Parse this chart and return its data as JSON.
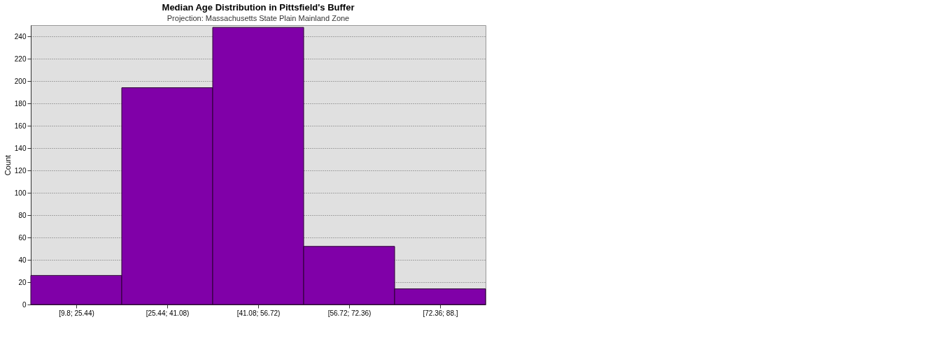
{
  "chart_data": {
    "type": "bar",
    "title": "Median Age Distribution in Pittsfield's Buffer",
    "ylabel": "Count",
    "categories": [
      "[9.8; 25.44)",
      "[25.44; 41.08)",
      "[41.08; 56.72)",
      "[56.72; 72.36)",
      "[72.36; 88.]"
    ],
    "values": [
      26,
      194,
      248,
      52,
      14
    ],
    "color": "#8000a8",
    "ylim": [
      0,
      250
    ],
    "yticks": [
      0,
      20,
      40,
      60,
      80,
      100,
      120,
      140,
      160,
      180,
      200,
      220,
      240
    ],
    "grid": "y",
    "annotations": [
      "Projection: Massachusetts State Plain Mainland Zone"
    ]
  }
}
